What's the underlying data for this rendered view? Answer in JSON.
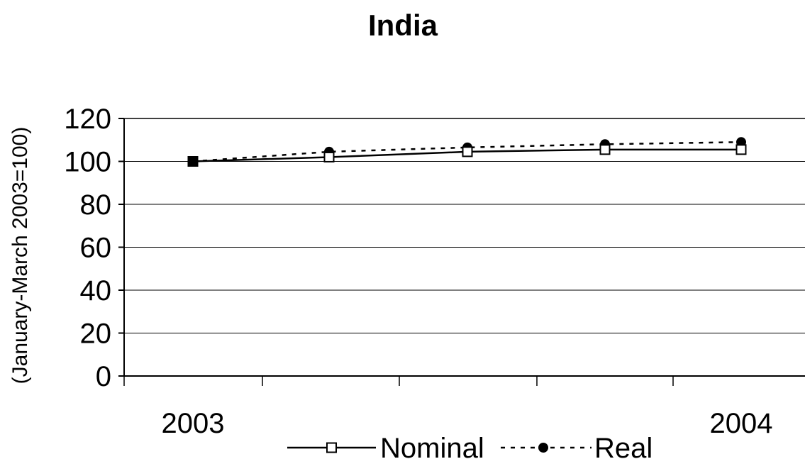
{
  "chart_data": {
    "type": "line",
    "title": "India",
    "ylabel": "(January-March 2003=100)",
    "xlabel": "",
    "ylim": [
      0,
      120
    ],
    "yticks": [
      0,
      20,
      40,
      60,
      80,
      100,
      120
    ],
    "x_tick_labels": [
      "2003",
      "2004"
    ],
    "grid": "horizontal",
    "legend_position": "bottom",
    "colors": {
      "line": "#000000",
      "grid": "#000000",
      "background": "#ffffff"
    },
    "series": [
      {
        "name": "Nominal",
        "marker": "open-square",
        "line_style": "solid",
        "values": [
          100,
          102,
          104.5,
          105.5,
          105.5
        ]
      },
      {
        "name": "Real",
        "marker": "filled-circle",
        "line_style": "dotted",
        "values": [
          100,
          104.5,
          106.5,
          108,
          109
        ]
      }
    ]
  }
}
